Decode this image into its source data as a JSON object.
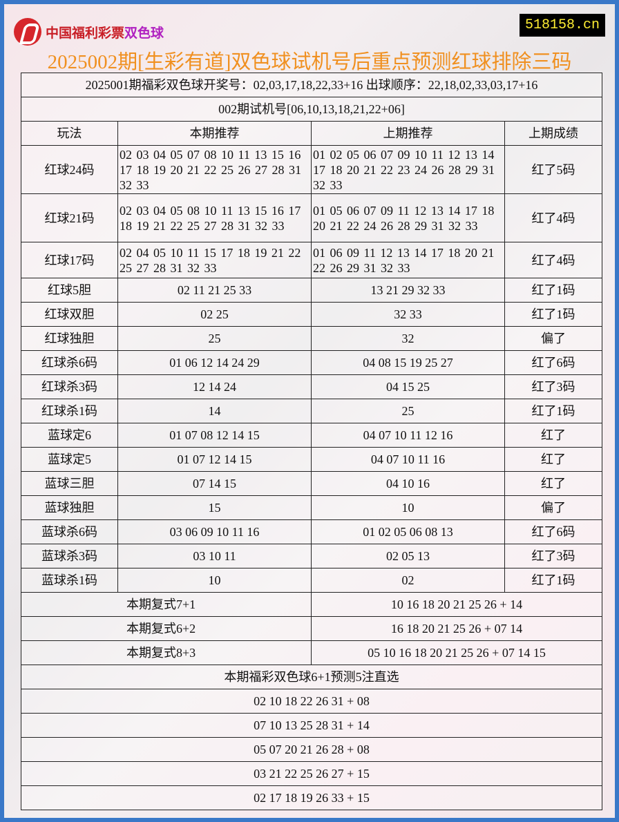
{
  "logo": {
    "text": "中国福利彩票",
    "highlight": "双色球"
  },
  "site": "518158.cn",
  "title": "2025002期[生彩有道]双色球试机号后重点预测红球排除三码",
  "draw_info": "2025001期福彩双色球开奖号：02,03,17,18,22,33+16 出球顺序：22,18,02,33,03,17+16",
  "trial": "002期试机号[06,10,13,18,21,22+06]",
  "headers": [
    "玩法",
    "本期推荐",
    "上期推荐",
    "上期成绩"
  ],
  "rows": [
    {
      "name": "红球24码",
      "cur": "02 03 04 05 07 08 10 11 13 15 16 17 18 19 20 21 22 25 26 27 28 31 32 33",
      "prev": "01 02 05 06 07 09 10 11 12 13 14 17 18 20 21 22 23 24 26 28 29 31 32 33",
      "result": "红了5码",
      "size": "tall3"
    },
    {
      "name": "红球21码",
      "cur": "02 03 04 05 08 10 11 13 15 16 17 18 19 21 22 25 27 28 31 32 33",
      "prev": "01 05 06 07 09 11 12 13 14 17 18 20 21 22 24 26 28 29 31 32 33",
      "result": "红了4码",
      "size": "tall3"
    },
    {
      "name": "红球17码",
      "cur": "02 04 05 10 11 15 17 18 19 21 22 25 27 28 31 32 33",
      "prev": "01 06 09 11 12 13 14 17 18 20 21 22 26 29 31 32 33",
      "result": "红了4码",
      "size": "tall2"
    },
    {
      "name": "红球5胆",
      "cur": "02 11 21 25 33",
      "prev": "13 21 29 32 33",
      "result": "红了1码"
    },
    {
      "name": "红球双胆",
      "cur": "02 25",
      "prev": "32 33",
      "result": "红了1码"
    },
    {
      "name": "红球独胆",
      "cur": "25",
      "prev": "32",
      "result": "偏了"
    },
    {
      "name": "红球杀6码",
      "cur": "01 06 12 14 24 29",
      "prev": "04 08 15 19 25 27",
      "result": "红了6码"
    },
    {
      "name": "红球杀3码",
      "cur": "12 14 24",
      "prev": "04 15 25",
      "result": "红了3码"
    },
    {
      "name": "红球杀1码",
      "cur": "14",
      "prev": "25",
      "result": "红了1码"
    },
    {
      "name": "蓝球定6",
      "cur": "01 07 08 12 14 15",
      "prev": "04 07 10 11 12 16",
      "result": "红了"
    },
    {
      "name": "蓝球定5",
      "cur": "01 07 12 14 15",
      "prev": "04 07 10 11 16",
      "result": "红了"
    },
    {
      "name": "蓝球三胆",
      "cur": "07 14 15",
      "prev": "04 10 16",
      "result": "红了"
    },
    {
      "name": "蓝球独胆",
      "cur": "15",
      "prev": "10",
      "result": "偏了"
    },
    {
      "name": "蓝球杀6码",
      "cur": "03 06 09 10 11 16",
      "prev": "01 02 05 06 08 13",
      "result": "红了6码"
    },
    {
      "name": "蓝球杀3码",
      "cur": "03 10 11",
      "prev": "02 05 13",
      "result": "红了3码"
    },
    {
      "name": "蓝球杀1码",
      "cur": "10",
      "prev": "02",
      "result": "红了1码"
    }
  ],
  "fushi": [
    {
      "label": "本期复式7+1",
      "nums": "10 16 18 20 21 25 26 + 14"
    },
    {
      "label": "本期复式6+2",
      "nums": "16 18 20 21 25 26 + 07 14"
    },
    {
      "label": "本期复式8+3",
      "nums": "05 10 16 18 20 21 25 26 + 07 14 15"
    }
  ],
  "picks_title": "本期福彩双色球6+1预测5注直选",
  "picks": [
    "02 10 18 22 26 31 + 08",
    "07 10 13 25 28 31 + 14",
    "05 07 20 21 26 28 + 08",
    "03 21 22 25 26 27 + 15",
    "02 17 18 19 26 33 + 15"
  ],
  "colors": {
    "title": "#f09020",
    "border": "#3a78c8",
    "site_text": "#ffee33"
  }
}
